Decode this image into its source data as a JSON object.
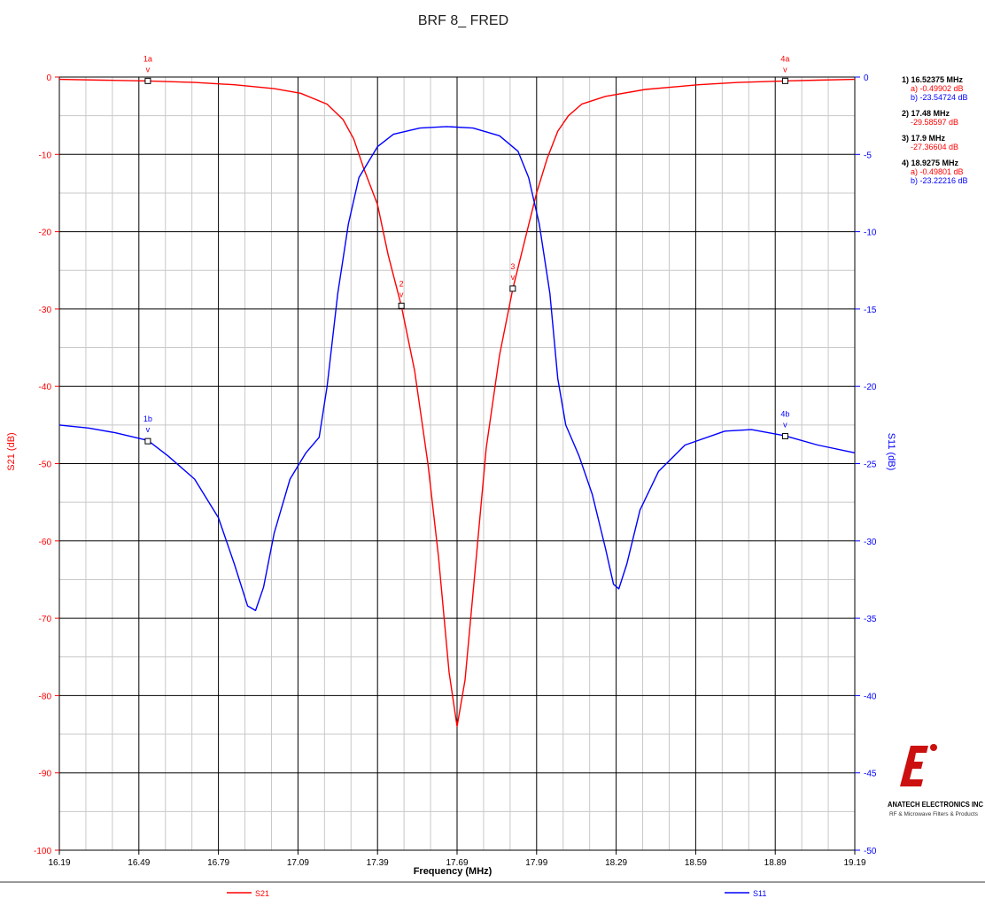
{
  "chart_data": {
    "type": "line",
    "title": "BRF 8_ FRED",
    "xlabel": "Frequency (MHz)",
    "ylabel_left": "S21 (dB)",
    "ylabel_right": "S11 (dB)",
    "xlim": [
      16.19,
      19.19
    ],
    "ylim_left": [
      -100,
      0
    ],
    "ylim_right": [
      -50,
      0
    ],
    "x_ticks": [
      "16.19",
      "16.49",
      "16.79",
      "17.09",
      "17.39",
      "17.69",
      "17.99",
      "18.29",
      "18.59",
      "18.89",
      "19.19"
    ],
    "y_ticks_left": [
      "0",
      "-10",
      "-20",
      "-30",
      "-40",
      "-50",
      "-60",
      "-70",
      "-80",
      "-90",
      "-100"
    ],
    "y_ticks_right": [
      "0",
      "-5",
      "-10",
      "-15",
      "-20",
      "-25",
      "-30",
      "-35",
      "-40",
      "-45",
      "-50"
    ],
    "grid": true,
    "series": [
      {
        "name": "S21",
        "axis": "left",
        "color": "#ff0000",
        "points": [
          [
            16.19,
            -0.3
          ],
          [
            16.35,
            -0.4
          ],
          [
            16.52375,
            -0.5
          ],
          [
            16.7,
            -0.7
          ],
          [
            16.85,
            -1.0
          ],
          [
            17.0,
            -1.5
          ],
          [
            17.1,
            -2.1
          ],
          [
            17.2,
            -3.5
          ],
          [
            17.26,
            -5.5
          ],
          [
            17.3,
            -8
          ],
          [
            17.34,
            -12
          ],
          [
            17.39,
            -16.5
          ],
          [
            17.43,
            -23
          ],
          [
            17.48,
            -29.6
          ],
          [
            17.53,
            -38
          ],
          [
            17.58,
            -50
          ],
          [
            17.62,
            -62
          ],
          [
            17.66,
            -77
          ],
          [
            17.69,
            -84
          ],
          [
            17.72,
            -78
          ],
          [
            17.76,
            -63
          ],
          [
            17.8,
            -48
          ],
          [
            17.85,
            -36
          ],
          [
            17.9,
            -27.4
          ],
          [
            17.95,
            -20.5
          ],
          [
            17.99,
            -15
          ],
          [
            18.03,
            -10.5
          ],
          [
            18.07,
            -7
          ],
          [
            18.11,
            -5
          ],
          [
            18.16,
            -3.5
          ],
          [
            18.25,
            -2.5
          ],
          [
            18.4,
            -1.6
          ],
          [
            18.6,
            -1.0
          ],
          [
            18.75,
            -0.7
          ],
          [
            18.9275,
            -0.5
          ],
          [
            19.05,
            -0.4
          ],
          [
            19.19,
            -0.3
          ]
        ]
      },
      {
        "name": "S11",
        "axis": "right",
        "color": "#0000ff",
        "points": [
          [
            16.19,
            -22.5
          ],
          [
            16.3,
            -22.7
          ],
          [
            16.4,
            -23.0
          ],
          [
            16.52375,
            -23.5
          ],
          [
            16.6,
            -24.5
          ],
          [
            16.7,
            -26
          ],
          [
            16.79,
            -28.5
          ],
          [
            16.85,
            -31.5
          ],
          [
            16.9,
            -34.2
          ],
          [
            16.93,
            -34.5
          ],
          [
            16.96,
            -33
          ],
          [
            17.0,
            -29.5
          ],
          [
            17.06,
            -26
          ],
          [
            17.12,
            -24.3
          ],
          [
            17.17,
            -23.3
          ],
          [
            17.2,
            -20
          ],
          [
            17.24,
            -14
          ],
          [
            17.28,
            -9.5
          ],
          [
            17.32,
            -6.5
          ],
          [
            17.39,
            -4.5
          ],
          [
            17.45,
            -3.7
          ],
          [
            17.55,
            -3.3
          ],
          [
            17.65,
            -3.2
          ],
          [
            17.75,
            -3.3
          ],
          [
            17.85,
            -3.8
          ],
          [
            17.92,
            -4.8
          ],
          [
            17.96,
            -6.5
          ],
          [
            18.0,
            -9.5
          ],
          [
            18.04,
            -14
          ],
          [
            18.07,
            -19.5
          ],
          [
            18.1,
            -22.5
          ],
          [
            18.15,
            -24.5
          ],
          [
            18.2,
            -27
          ],
          [
            18.25,
            -30.5
          ],
          [
            18.28,
            -32.8
          ],
          [
            18.3,
            -33.1
          ],
          [
            18.33,
            -31.5
          ],
          [
            18.38,
            -28
          ],
          [
            18.45,
            -25.5
          ],
          [
            18.55,
            -23.8
          ],
          [
            18.7,
            -22.9
          ],
          [
            18.8,
            -22.8
          ],
          [
            18.9275,
            -23.2
          ],
          [
            19.05,
            -23.8
          ],
          [
            19.19,
            -24.3
          ]
        ]
      }
    ],
    "markers": [
      {
        "label": "1a",
        "series": "S21",
        "x": 16.52375,
        "y": -0.49902
      },
      {
        "label": "1b",
        "series": "S11",
        "x": 16.52375,
        "y": -23.54724
      },
      {
        "label": "2",
        "series": "S21",
        "x": 17.48,
        "y": -29.58597
      },
      {
        "label": "3",
        "series": "S21",
        "x": 17.9,
        "y": -27.36604
      },
      {
        "label": "4a",
        "series": "S21",
        "x": 18.9275,
        "y": -0.49801
      },
      {
        "label": "4b",
        "series": "S11",
        "x": 18.9275,
        "y": -23.22216
      }
    ],
    "marker_readout": [
      {
        "head": "1) 16.52375 MHz",
        "lines": [
          {
            "text": "a) -0.49902 dB",
            "color": "#ff0000"
          },
          {
            "text": "b) -23.54724 dB",
            "color": "#0000ff"
          }
        ]
      },
      {
        "head": "2) 17.48 MHz",
        "lines": [
          {
            "text": "-29.58597 dB",
            "color": "#ff0000"
          }
        ]
      },
      {
        "head": "3) 17.9 MHz",
        "lines": [
          {
            "text": "-27.36604 dB",
            "color": "#ff0000"
          }
        ]
      },
      {
        "head": "4) 18.9275 MHz",
        "lines": [
          {
            "text": "a) -0.49801 dB",
            "color": "#ff0000"
          },
          {
            "text": "b) -23.22216 dB",
            "color": "#0000ff"
          }
        ]
      }
    ],
    "legend": [
      {
        "name": "S21",
        "color": "#ff0000"
      },
      {
        "name": "S11",
        "color": "#0000ff"
      }
    ]
  },
  "logo": {
    "company": "ANATECH ELECTRONICS INC",
    "tagline": "RF & Microwave Filters & Products"
  }
}
